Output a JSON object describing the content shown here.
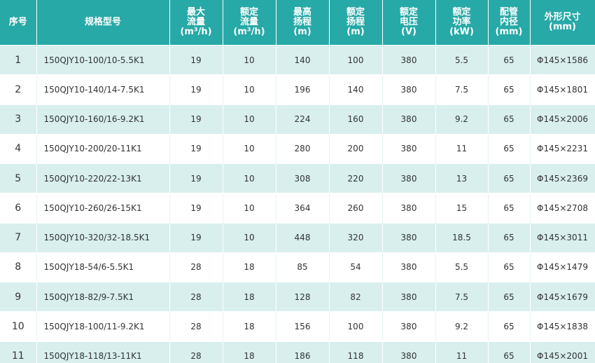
{
  "table": {
    "header": [
      [
        "序号"
      ],
      [
        "规格型号"
      ],
      [
        "最大",
        "流量",
        "(m³/h)"
      ],
      [
        "额定",
        "流量",
        "(m³/h)"
      ],
      [
        "最高",
        "扬程",
        "(m)"
      ],
      [
        "额定",
        "扬程",
        "(m)"
      ],
      [
        "额定",
        "电压",
        "(V)"
      ],
      [
        "额定",
        "功率",
        "(kW)"
      ],
      [
        "配管",
        "内径",
        "(mm)"
      ],
      [
        "外形尺寸",
        "(mm)"
      ]
    ],
    "rows": [
      [
        1,
        "150QJY10-100/10-5.5K1",
        19,
        10,
        140,
        100,
        380,
        5.5,
        65,
        "Φ145×1586"
      ],
      [
        2,
        "150QJY10-140/14-7.5K1",
        19,
        10,
        196,
        140,
        380,
        7.5,
        65,
        "Φ145×1801"
      ],
      [
        3,
        "150QJY10-160/16-9.2K1",
        19,
        10,
        224,
        160,
        380,
        9.2,
        65,
        "Φ145×2006"
      ],
      [
        4,
        "150QJY10-200/20-11K1",
        19,
        10,
        280,
        200,
        380,
        11,
        65,
        "Φ145×2231"
      ],
      [
        5,
        "150QJY10-220/22-13K1",
        19,
        10,
        308,
        220,
        380,
        13,
        65,
        "Φ145×2369"
      ],
      [
        6,
        "150QJY10-260/26-15K1",
        19,
        10,
        364,
        260,
        380,
        15,
        65,
        "Φ145×2708"
      ],
      [
        7,
        "150QJY10-320/32-18.5K1",
        19,
        10,
        448,
        320,
        380,
        18.5,
        65,
        "Φ145×3011"
      ],
      [
        8,
        "150QJY18-54/6-5.5K1",
        28,
        18,
        85,
        54,
        380,
        5.5,
        65,
        "Φ145×1479"
      ],
      [
        9,
        "150QJY18-82/9-7.5K1",
        28,
        18,
        128,
        82,
        380,
        7.5,
        65,
        "Φ145×1679"
      ],
      [
        10,
        "150QJY18-100/11-9.2K1",
        28,
        18,
        156,
        100,
        380,
        9.2,
        65,
        "Φ145×1838"
      ],
      [
        11,
        "150QJY18-118/13-11K1",
        28,
        18,
        186,
        118,
        380,
        11,
        65,
        "Φ145×2001"
      ]
    ]
  }
}
